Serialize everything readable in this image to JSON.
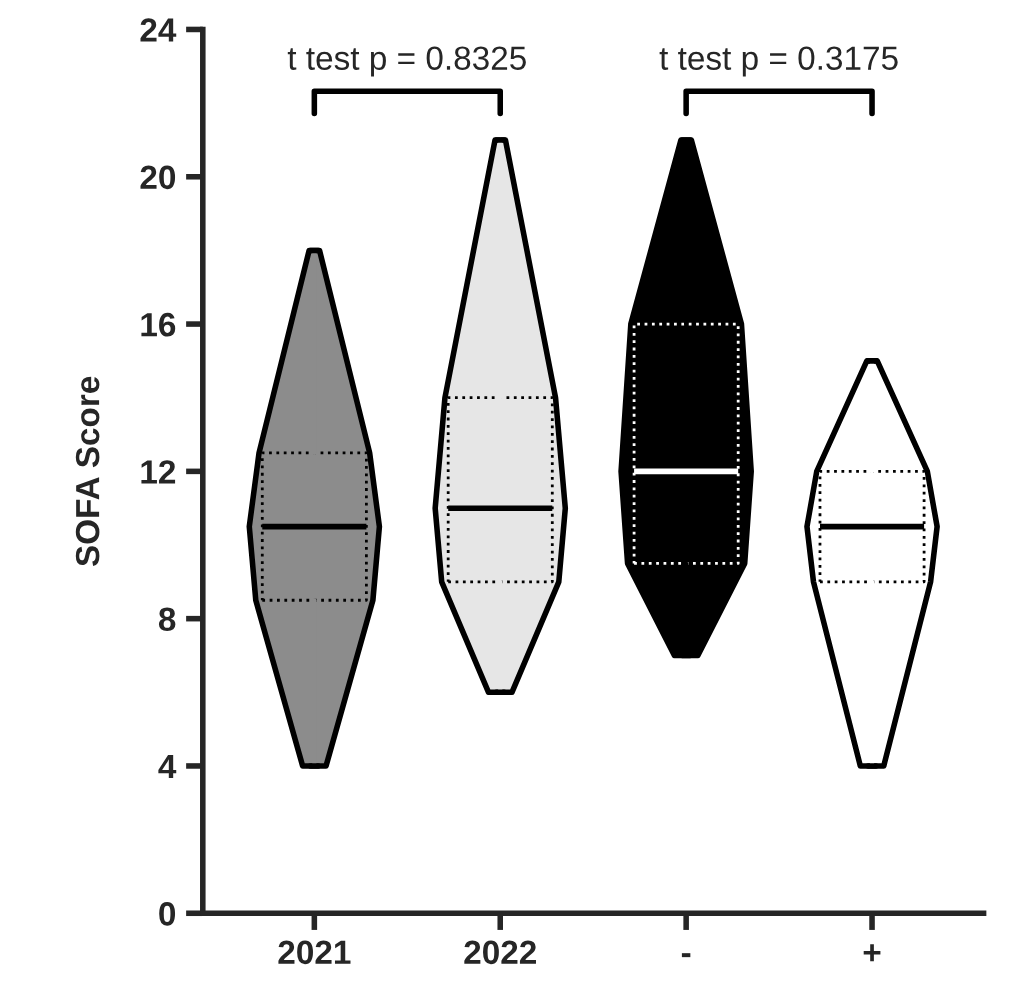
{
  "chart_data": {
    "type": "box",
    "ylabel": "SOFA Score",
    "categories": [
      "2021",
      "2022",
      "-",
      "+"
    ],
    "boxes": [
      {
        "low": 4,
        "q1": 8.5,
        "median": 10.5,
        "q3": 12.5,
        "high": 18
      },
      {
        "low": 6,
        "q1": 9,
        "median": 11,
        "q3": 14,
        "high": 21
      },
      {
        "low": 7,
        "q1": 9.5,
        "median": 12,
        "q3": 16,
        "high": 21
      },
      {
        "low": 4,
        "q1": 9,
        "median": 10.5,
        "q3": 12,
        "high": 15
      }
    ],
    "colors": [
      "#8c8c8c",
      "#e6e6e6",
      "#000000",
      "#ffffff"
    ],
    "ylim": [
      0,
      24
    ],
    "yticks": [
      0,
      4,
      8,
      12,
      16,
      20,
      24
    ],
    "grid": false,
    "annotations": [
      "t test p = 0.8325",
      "t test p = 0.3175"
    ]
  }
}
